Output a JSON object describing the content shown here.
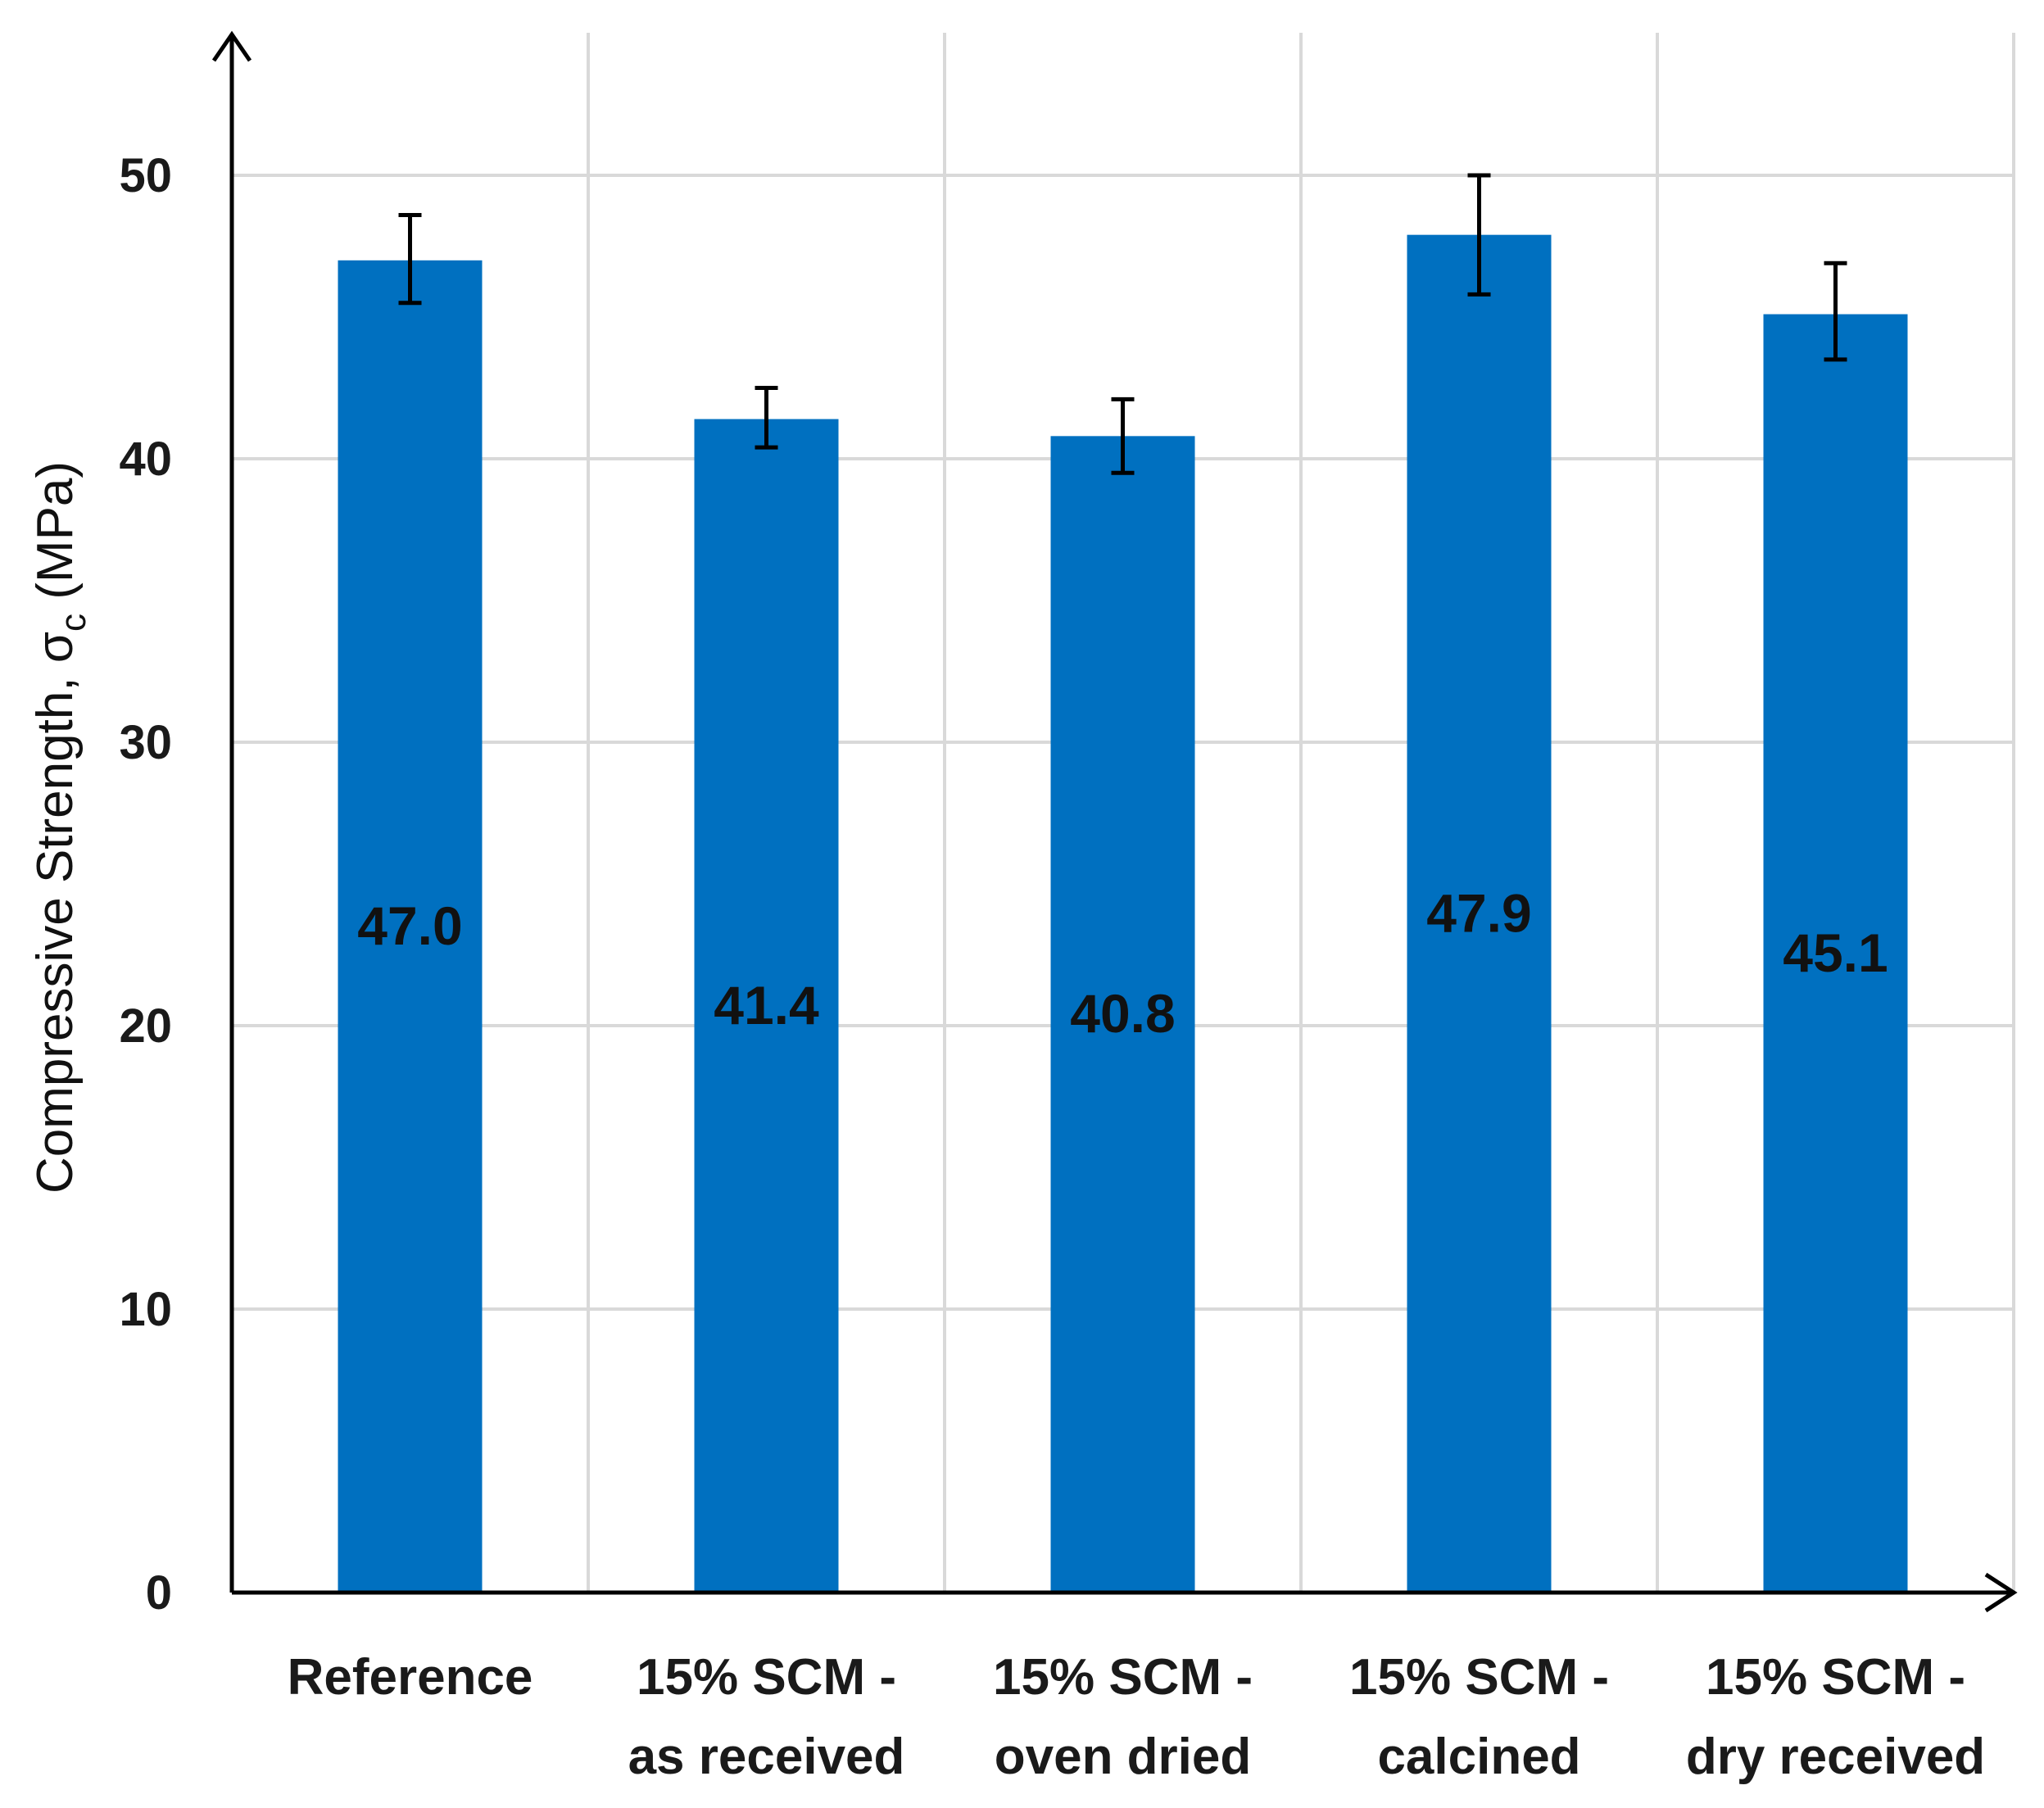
{
  "chart_data": {
    "type": "bar",
    "title": "",
    "xlabel": "",
    "ylabel": "Compressive Strength, σc (MPa)",
    "ylabel_parts": {
      "main": "Compressive Strength, σ",
      "subscript": "c",
      "unit": " (MPa)"
    },
    "categories": [
      [
        "Reference"
      ],
      [
        "15% SCM -",
        "as received"
      ],
      [
        "15% SCM -",
        "oven dried"
      ],
      [
        "15% SCM -",
        "calcined"
      ],
      [
        "15% SCM -",
        "dry received"
      ]
    ],
    "values": [
      47.0,
      41.4,
      40.8,
      47.9,
      45.1
    ],
    "value_labels": [
      "47.0",
      "41.4",
      "40.8",
      "47.9",
      "45.1"
    ],
    "error_low": [
      45.5,
      40.4,
      39.5,
      45.8,
      43.5
    ],
    "error_high": [
      48.6,
      42.5,
      42.1,
      50.0,
      46.9
    ],
    "ylim": [
      0,
      53
    ],
    "yticks": [
      0,
      10,
      20,
      30,
      40,
      50
    ],
    "grid": true,
    "legend": "none",
    "colors": {
      "bar": "#0070C0",
      "grid": "#D9D9D9",
      "axis": "#000000",
      "error_bar": "#000000"
    }
  }
}
